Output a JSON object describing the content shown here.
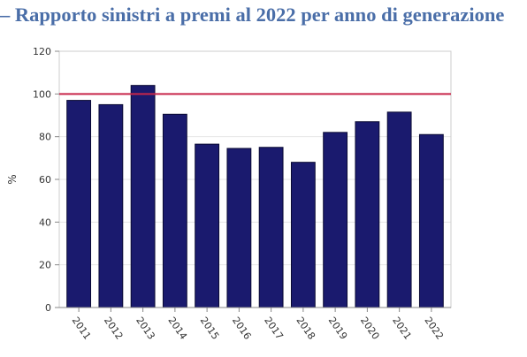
{
  "title": "– Rapporto sinistri a premi al 2022 per anno di generazione",
  "chart_data": {
    "type": "bar",
    "title": "",
    "xlabel": "",
    "ylabel": "%",
    "categories": [
      "2011",
      "2012",
      "2013",
      "2014",
      "2015",
      "2016",
      "2017",
      "2018",
      "2019",
      "2020",
      "2021",
      "2022"
    ],
    "values": [
      97,
      95,
      104,
      90.5,
      76.5,
      74.5,
      75,
      68,
      82,
      87,
      91.5,
      81
    ],
    "ylim": [
      0,
      120
    ],
    "yticks": [
      0,
      20,
      40,
      60,
      80,
      100,
      120
    ],
    "reference_line": 100,
    "grid": true,
    "bar_color": "#1a1a6e",
    "reference_line_color": "#c8264a"
  }
}
